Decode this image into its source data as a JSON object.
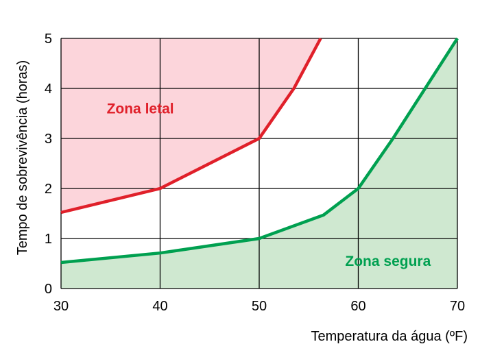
{
  "chart_data": {
    "type": "line",
    "xlabel": "Temperatura da água (ºF)",
    "ylabel": "Tempo de sobrevivência (horas)",
    "xlim": [
      30,
      70
    ],
    "ylim": [
      0,
      5
    ],
    "x_ticks": [
      30,
      40,
      50,
      60,
      70
    ],
    "y_ticks": [
      0,
      1,
      2,
      3,
      4,
      5
    ],
    "grid": true,
    "colors": {
      "lethal_line": "#e0202a",
      "lethal_fill": "#fcd5db",
      "safe_line": "#00a050",
      "safe_fill": "#cfe8d0",
      "grid": "#000000"
    },
    "series": [
      {
        "id": "lethal",
        "label": "Zona letal",
        "label_at": [
          38,
          3.5
        ],
        "points": [
          [
            30,
            1.52
          ],
          [
            40,
            2.0
          ],
          [
            50,
            3.0
          ],
          [
            53.5,
            4.0
          ],
          [
            56.2,
            5.0
          ]
        ]
      },
      {
        "id": "safe",
        "label": "Zona segura",
        "label_at": [
          63,
          0.45
        ],
        "points": [
          [
            30,
            0.52
          ],
          [
            40,
            0.71
          ],
          [
            50,
            1.0
          ],
          [
            56.5,
            1.47
          ],
          [
            60,
            2.0
          ],
          [
            63.5,
            3.0
          ],
          [
            70,
            5.0
          ]
        ]
      }
    ]
  }
}
